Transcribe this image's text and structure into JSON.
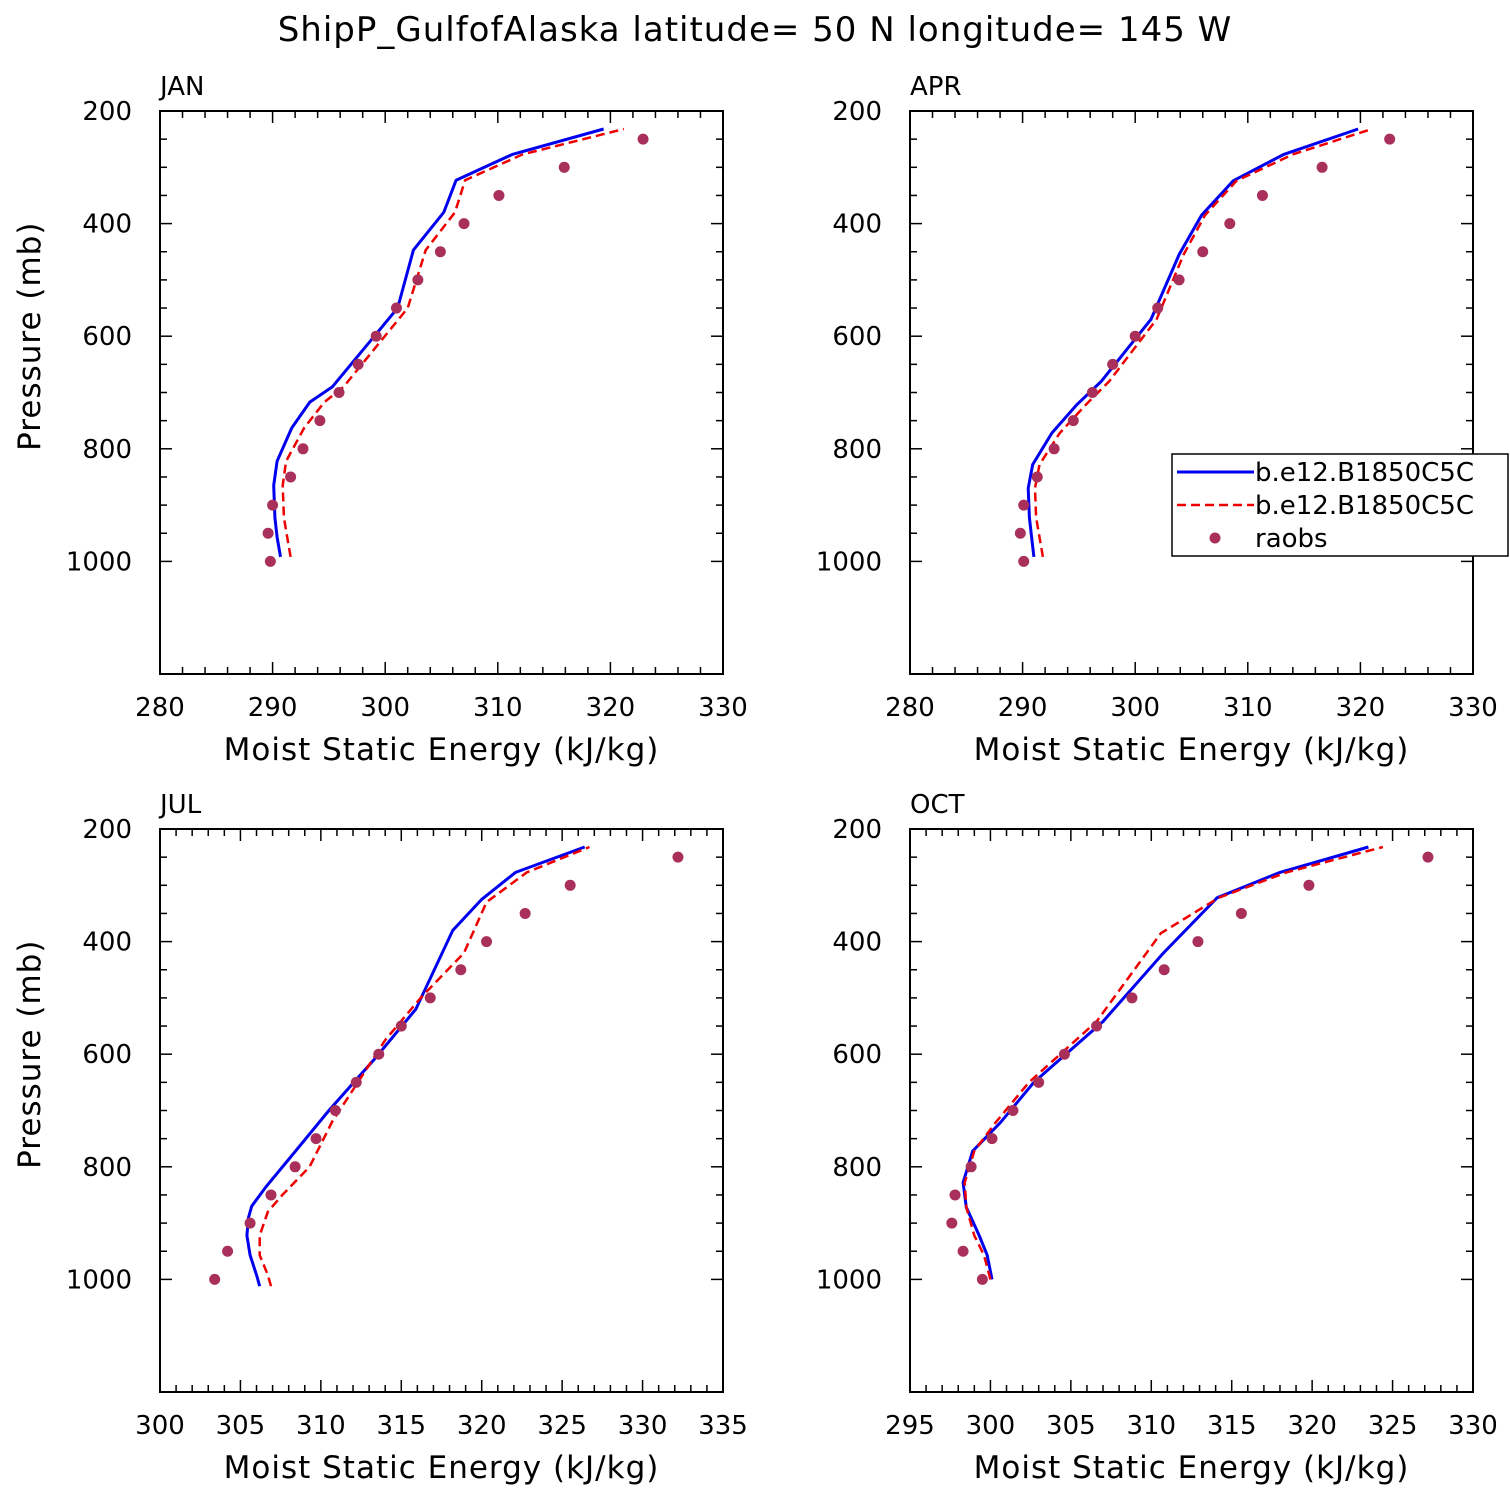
{
  "title": "ShipP_GulfofAlaska  latitude= 50 N longitude= 145 W",
  "legend": {
    "entries": [
      {
        "label": "b.e12.B1850C5C",
        "style": "solid",
        "color": "#0000ee"
      },
      {
        "label": "b.e12.B1850C5C",
        "style": "dashed",
        "color": "#ee0000"
      },
      {
        "label": "raobs",
        "style": "dots",
        "color": "#a8305a"
      }
    ]
  },
  "colors": {
    "model_solid": "#0000ee",
    "model_dashed": "#ee0000",
    "raobs": "#a8305a"
  },
  "chart_data": [
    {
      "type": "line",
      "panel_label": "JAN",
      "xlabel": "Moist Static Energy (kJ/kg)",
      "ylabel": "Pressure (mb)",
      "xlim": [
        280,
        330
      ],
      "ylim": [
        1000,
        200
      ],
      "xticks": [
        280,
        290,
        300,
        310,
        320,
        330
      ],
      "yticks": [
        200,
        400,
        600,
        800,
        1000
      ],
      "show_ylabel": true,
      "series": [
        {
          "name": "b.e12.B1850C5C",
          "style": "solid",
          "points": [
            [
              290.7,
              992
            ],
            [
              290.4,
              957
            ],
            [
              290.2,
              922
            ],
            [
              290.1,
              865
            ],
            [
              290.4,
              822
            ],
            [
              291.7,
              763
            ],
            [
              293.3,
              717
            ],
            [
              295.3,
              690
            ],
            [
              301.1,
              550
            ],
            [
              302.5,
              447
            ],
            [
              305.2,
              380
            ],
            [
              306.3,
              323
            ],
            [
              311.3,
              277
            ],
            [
              319.4,
              232
            ]
          ]
        },
        {
          "name": "b.e12.B1850C5C",
          "style": "dashed",
          "points": [
            [
              291.6,
              992
            ],
            [
              291.3,
              957
            ],
            [
              291.0,
              922
            ],
            [
              290.9,
              865
            ],
            [
              291.2,
              822
            ],
            [
              292.8,
              763
            ],
            [
              294.6,
              717
            ],
            [
              296.3,
              690
            ],
            [
              302.0,
              550
            ],
            [
              303.6,
              447
            ],
            [
              306.2,
              380
            ],
            [
              307.1,
              323
            ],
            [
              312.2,
              277
            ],
            [
              321.2,
              232
            ]
          ]
        },
        {
          "name": "raobs",
          "style": "dots",
          "points": [
            [
              289.8,
              1000
            ],
            [
              289.6,
              950
            ],
            [
              290.0,
              900
            ],
            [
              291.6,
              850
            ],
            [
              292.7,
              800
            ],
            [
              294.2,
              750
            ],
            [
              295.9,
              700
            ],
            [
              297.6,
              650
            ],
            [
              299.2,
              600
            ],
            [
              301.0,
              550
            ],
            [
              302.9,
              500
            ],
            [
              304.9,
              450
            ],
            [
              307.0,
              400
            ],
            [
              310.1,
              350
            ],
            [
              315.9,
              300
            ],
            [
              322.9,
              250
            ]
          ]
        }
      ]
    },
    {
      "type": "line",
      "panel_label": "APR",
      "xlabel": "Moist Static Energy (kJ/kg)",
      "ylabel": "",
      "xlim": [
        280,
        330
      ],
      "ylim": [
        1000,
        200
      ],
      "xticks": [
        280,
        290,
        300,
        310,
        320,
        330
      ],
      "yticks": [
        200,
        400,
        600,
        800,
        1000
      ],
      "show_ylabel": false,
      "series": [
        {
          "name": "b.e12.B1850C5C",
          "style": "solid",
          "points": [
            [
              291.0,
              992
            ],
            [
              290.8,
              957
            ],
            [
              290.6,
              922
            ],
            [
              290.5,
              870
            ],
            [
              290.9,
              828
            ],
            [
              292.6,
              772
            ],
            [
              294.8,
              722
            ],
            [
              297.0,
              680
            ],
            [
              301.4,
              570
            ],
            [
              303.9,
              455
            ],
            [
              305.9,
              385
            ],
            [
              308.7,
              324
            ],
            [
              313.2,
              277
            ],
            [
              319.8,
              232
            ]
          ]
        },
        {
          "name": "b.e12.B1850C5C",
          "style": "dashed",
          "points": [
            [
              291.8,
              992
            ],
            [
              291.5,
              957
            ],
            [
              291.2,
              922
            ],
            [
              291.1,
              870
            ],
            [
              291.5,
              828
            ],
            [
              293.3,
              772
            ],
            [
              295.6,
              722
            ],
            [
              297.7,
              680
            ],
            [
              301.9,
              570
            ],
            [
              304.3,
              455
            ],
            [
              306.2,
              385
            ],
            [
              309.0,
              324
            ],
            [
              314.0,
              277
            ],
            [
              321.0,
              232
            ]
          ]
        },
        {
          "name": "raobs",
          "style": "dots",
          "points": [
            [
              290.1,
              1000
            ],
            [
              289.8,
              950
            ],
            [
              290.1,
              900
            ],
            [
              291.3,
              850
            ],
            [
              292.8,
              800
            ],
            [
              294.5,
              750
            ],
            [
              296.2,
              700
            ],
            [
              298.0,
              650
            ],
            [
              300.0,
              600
            ],
            [
              302.0,
              550
            ],
            [
              303.9,
              500
            ],
            [
              306.0,
              450
            ],
            [
              308.4,
              400
            ],
            [
              311.3,
              350
            ],
            [
              316.6,
              300
            ],
            [
              322.6,
              250
            ]
          ]
        }
      ]
    },
    {
      "type": "line",
      "panel_label": "JUL",
      "xlabel": "Moist Static Energy (kJ/kg)",
      "ylabel": "Pressure (mb)",
      "xlim": [
        300,
        335
      ],
      "ylim": [
        1000,
        200
      ],
      "xticks": [
        300,
        305,
        310,
        315,
        320,
        325,
        330,
        335
      ],
      "yticks": [
        200,
        400,
        600,
        800,
        1000
      ],
      "show_ylabel": true,
      "series": [
        {
          "name": "b.e12.B1850C5C",
          "style": "solid",
          "points": [
            [
              306.2,
              1012
            ],
            [
              306.0,
              992
            ],
            [
              305.6,
              957
            ],
            [
              305.4,
              922
            ],
            [
              305.5,
              890
            ],
            [
              305.7,
              870
            ],
            [
              306.6,
              835
            ],
            [
              308.2,
              780
            ],
            [
              310.5,
              700
            ],
            [
              313.3,
              610
            ],
            [
              315.9,
              520
            ],
            [
              318.2,
              380
            ],
            [
              320.0,
              325
            ],
            [
              322.1,
              277
            ],
            [
              326.4,
              232
            ]
          ]
        },
        {
          "name": "b.e12.B1850C5C",
          "style": "dashed",
          "points": [
            [
              306.9,
              1012
            ],
            [
              306.7,
              992
            ],
            [
              306.2,
              957
            ],
            [
              306.2,
              922
            ],
            [
              306.7,
              880
            ],
            [
              307.6,
              850
            ],
            [
              309.3,
              800
            ],
            [
              310.7,
              720
            ],
            [
              312.3,
              650
            ],
            [
              314.0,
              575
            ],
            [
              316.2,
              500
            ],
            [
              318.9,
              420
            ],
            [
              320.3,
              330
            ],
            [
              322.8,
              277
            ],
            [
              326.7,
              232
            ]
          ]
        },
        {
          "name": "raobs",
          "style": "dots",
          "points": [
            [
              303.4,
              1000
            ],
            [
              304.2,
              950
            ],
            [
              305.6,
              900
            ],
            [
              306.9,
              850
            ],
            [
              308.4,
              800
            ],
            [
              309.7,
              750
            ],
            [
              310.9,
              700
            ],
            [
              312.2,
              650
            ],
            [
              313.6,
              600
            ],
            [
              315.0,
              550
            ],
            [
              316.8,
              500
            ],
            [
              318.7,
              450
            ],
            [
              320.3,
              400
            ],
            [
              322.7,
              350
            ],
            [
              325.5,
              300
            ],
            [
              332.2,
              250
            ]
          ]
        }
      ]
    },
    {
      "type": "line",
      "panel_label": "OCT",
      "xlabel": "Moist Static Energy (kJ/kg)",
      "ylabel": "",
      "xlim": [
        295,
        330
      ],
      "ylim": [
        1000,
        200
      ],
      "xticks": [
        295,
        300,
        305,
        310,
        315,
        320,
        325,
        330
      ],
      "yticks": [
        200,
        400,
        600,
        800,
        1000
      ],
      "show_ylabel": false,
      "series": [
        {
          "name": "b.e12.B1850C5C",
          "style": "solid",
          "points": [
            [
              300.1,
              1000
            ],
            [
              299.8,
              957
            ],
            [
              299.3,
              922
            ],
            [
              298.5,
              872
            ],
            [
              298.3,
              828
            ],
            [
              298.9,
              772
            ],
            [
              300.6,
              722
            ],
            [
              302.7,
              650
            ],
            [
              307.0,
              542
            ],
            [
              310.7,
              422
            ],
            [
              314.1,
              322
            ],
            [
              318.0,
              277
            ],
            [
              323.5,
              232
            ]
          ]
        },
        {
          "name": "b.e12.B1850C5C",
          "style": "dashed",
          "points": [
            [
              300.0,
              1000
            ],
            [
              299.6,
              957
            ],
            [
              299.0,
              922
            ],
            [
              298.5,
              872
            ],
            [
              298.4,
              828
            ],
            [
              299.0,
              772
            ],
            [
              300.3,
              722
            ],
            [
              302.4,
              650
            ],
            [
              306.6,
              542
            ],
            [
              310.6,
              385
            ],
            [
              314.2,
              322
            ],
            [
              318.4,
              277
            ],
            [
              324.4,
              232
            ]
          ]
        },
        {
          "name": "raobs",
          "style": "dots",
          "points": [
            [
              299.5,
              1000
            ],
            [
              298.3,
              950
            ],
            [
              297.6,
              900
            ],
            [
              297.8,
              850
            ],
            [
              298.8,
              800
            ],
            [
              300.1,
              750
            ],
            [
              301.4,
              700
            ],
            [
              303.0,
              650
            ],
            [
              304.6,
              600
            ],
            [
              306.6,
              550
            ],
            [
              308.8,
              500
            ],
            [
              310.8,
              450
            ],
            [
              312.9,
              400
            ],
            [
              315.6,
              350
            ],
            [
              319.8,
              300
            ],
            [
              327.2,
              250
            ]
          ]
        }
      ]
    }
  ]
}
